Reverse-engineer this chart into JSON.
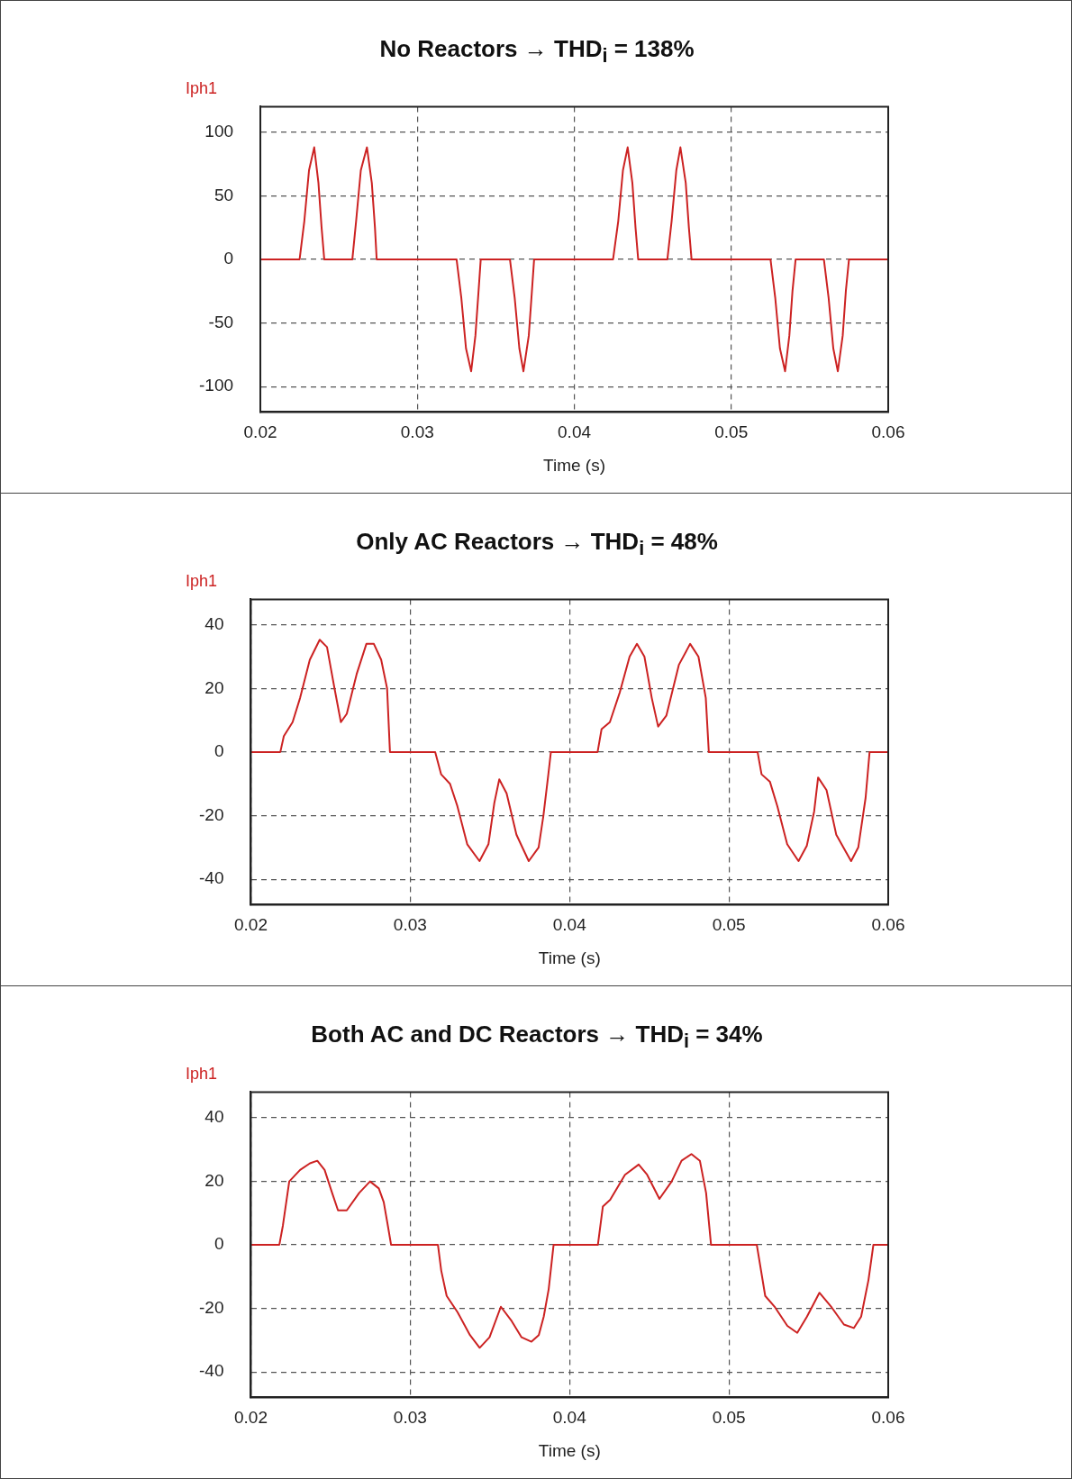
{
  "chart_data": [
    {
      "type": "line",
      "title": "No Reactors → THD$_{i}$ = 138%",
      "xlabel": "Time (s)",
      "xlim": [
        0.02,
        0.06
      ],
      "xticks": [
        0.02,
        0.03,
        0.04,
        0.05,
        0.06
      ],
      "ylim": [
        -120,
        120
      ],
      "yticks": [
        -100,
        -50,
        0,
        50,
        100
      ],
      "grid": true,
      "legend": "top left",
      "marker": "none",
      "line_style": "solid",
      "series": [
        {
          "name": "Iph1",
          "color": "#cc2222",
          "x": [
            0.02,
            0.0225,
            0.0228,
            0.0231,
            0.02343,
            0.0237,
            0.0239,
            0.02407,
            0.02586,
            0.0261,
            0.0264,
            0.02679,
            0.0271,
            0.0273,
            0.02741,
            0.0325,
            0.0328,
            0.0331,
            0.03343,
            0.0337,
            0.0339,
            0.03404,
            0.0359,
            0.0362,
            0.0365,
            0.03676,
            0.0371,
            0.0373,
            0.03744,
            0.04247,
            0.0428,
            0.0431,
            0.0434,
            0.0437,
            0.0439,
            0.04407,
            0.04593,
            0.0462,
            0.0465,
            0.04676,
            0.0471,
            0.0473,
            0.04747,
            0.0525,
            0.0528,
            0.0531,
            0.05343,
            0.0537,
            0.0539,
            0.0541,
            0.0559,
            0.0562,
            0.0565,
            0.05679,
            0.0571,
            0.0573,
            0.0575,
            0.06
          ],
          "values": [
            0,
            0,
            30,
            70,
            88,
            60,
            25,
            0,
            0,
            30,
            70,
            88,
            60,
            25,
            0,
            0,
            -30,
            -70,
            -88,
            -60,
            -25,
            0,
            0,
            -30,
            -70,
            -88,
            -60,
            -25,
            0,
            0,
            30,
            70,
            88,
            60,
            25,
            0,
            0,
            30,
            70,
            88,
            60,
            25,
            0,
            0,
            -30,
            -70,
            -88,
            -60,
            -25,
            0,
            0,
            -30,
            -70,
            -88,
            -60,
            -25,
            0,
            0
          ]
        }
      ]
    },
    {
      "type": "line",
      "title": "Only AC Reactors → THD$_{i}$ = 48%",
      "xlabel": "Time (s)",
      "xlim": [
        0.02,
        0.06
      ],
      "xticks": [
        0.02,
        0.03,
        0.04,
        0.05,
        0.06
      ],
      "ylim": [
        -48,
        48
      ],
      "yticks": [
        -40,
        -20,
        0,
        20,
        40
      ],
      "grid": true,
      "legend": "top left",
      "marker": "none",
      "line_style": "solid",
      "series": [
        {
          "name": "Iph1",
          "color": "#cc2222",
          "x": [
            0.02,
            0.02185,
            0.02207,
            0.02262,
            0.02309,
            0.0237,
            0.02432,
            0.02478,
            0.02525,
            0.02565,
            0.02602,
            0.02664,
            0.02725,
            0.02772,
            0.02818,
            0.02855,
            0.02873,
            0.03157,
            0.03194,
            0.0325,
            0.03296,
            0.03358,
            0.03435,
            0.03491,
            0.03528,
            0.03559,
            0.03605,
            0.03667,
            0.03744,
            0.03806,
            0.03836,
            0.03867,
            0.03883,
            0.04176,
            0.04201,
            0.04253,
            0.04315,
            0.04377,
            0.04423,
            0.0447,
            0.04516,
            0.04556,
            0.04608,
            0.04686,
            0.04757,
            0.04809,
            0.04855,
            0.04874,
            0.0518,
            0.05205,
            0.05258,
            0.05304,
            0.05366,
            0.05437,
            0.05489,
            0.05535,
            0.0556,
            0.05613,
            0.05674,
            0.05767,
            0.05812,
            0.05858,
            0.05883,
            0.06
          ],
          "values": [
            0,
            0,
            5,
            9.4,
            17,
            29,
            35.3,
            33,
            20,
            9.4,
            12,
            24.5,
            34,
            34,
            29,
            20,
            0,
            0,
            -7,
            -10,
            -17,
            -29,
            -34.3,
            -29,
            -16,
            -8.6,
            -13,
            -26,
            -34.3,
            -30,
            -20,
            -7,
            0,
            0,
            7.2,
            9.4,
            18.7,
            30,
            34,
            30,
            17,
            8,
            11.5,
            27.4,
            34,
            30,
            17,
            0,
            0,
            -7,
            -9.4,
            -17,
            -29,
            -34.3,
            -29.5,
            -18.7,
            -8,
            -12,
            -26,
            -34.3,
            -30,
            -14.4,
            0,
            0
          ]
        }
      ]
    },
    {
      "type": "line",
      "title": "Both AC and DC Reactors → THD$_{i}$ = 34%",
      "xlabel": "Time (s)",
      "xlim": [
        0.02,
        0.06
      ],
      "xticks": [
        0.02,
        0.03,
        0.04,
        0.05,
        0.06
      ],
      "ylim": [
        -48,
        48
      ],
      "yticks": [
        -40,
        -20,
        0,
        20,
        40
      ],
      "grid": true,
      "legend": "top left",
      "marker": "none",
      "line_style": "solid",
      "series": [
        {
          "name": "Iph1",
          "color": "#cc2222",
          "x": [
            0.02,
            0.02179,
            0.02201,
            0.02241,
            0.02309,
            0.02371,
            0.02417,
            0.02463,
            0.0251,
            0.02547,
            0.02602,
            0.0268,
            0.02748,
            0.02803,
            0.02834,
            0.02859,
            0.0288,
            0.03174,
            0.03195,
            0.03229,
            0.03297,
            0.03375,
            0.03436,
            0.03498,
            0.03569,
            0.03637,
            0.03699,
            0.03761,
            0.03807,
            0.03838,
            0.03869,
            0.039,
            0.04178,
            0.04209,
            0.04255,
            0.04348,
            0.04434,
            0.04487,
            0.04564,
            0.04641,
            0.04703,
            0.04765,
            0.04818,
            0.04857,
            0.04888,
            0.05175,
            0.05228,
            0.0529,
            0.05367,
            0.05429,
            0.0549,
            0.05568,
            0.05645,
            0.05722,
            0.05784,
            0.0583,
            0.05876,
            0.05907,
            0.06
          ],
          "values": [
            0,
            0,
            6,
            19.9,
            23.5,
            25.6,
            26.4,
            23.5,
            16.3,
            10.8,
            10.8,
            16.3,
            19.9,
            17.7,
            13.4,
            6.2,
            0,
            0,
            -8.2,
            -16.1,
            -21.2,
            -28.4,
            -32.4,
            -29.1,
            -19.5,
            -24,
            -29.1,
            -30.5,
            -28.4,
            -22.6,
            -14,
            0,
            0,
            12,
            14.1,
            22,
            25.2,
            22,
            14.4,
            19.9,
            26.4,
            28.5,
            26.4,
            16.3,
            0,
            0,
            -16.1,
            -19.7,
            -25.5,
            -27.7,
            -22.6,
            -15.1,
            -19.7,
            -25.1,
            -26.2,
            -22.6,
            -11.1,
            0,
            0
          ]
        }
      ]
    }
  ]
}
